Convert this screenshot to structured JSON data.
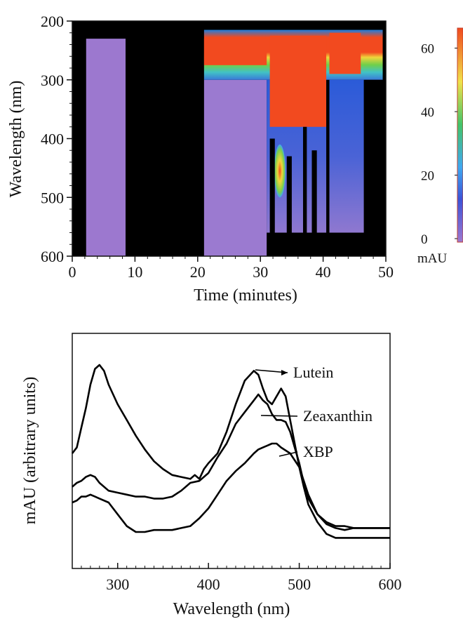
{
  "chart_data": [
    {
      "type": "heatmap",
      "title": "",
      "xlabel": "Time (minutes)",
      "ylabel": "Wavelength (nm)",
      "xlim": [
        0,
        50
      ],
      "ylim": [
        600,
        200
      ],
      "xticks": [
        0,
        10,
        20,
        30,
        40,
        50
      ],
      "yticks": [
        200,
        300,
        400,
        500,
        600
      ],
      "colorbar": {
        "label": "mAU",
        "range": [
          0,
          63
        ],
        "ticks": [
          0,
          20,
          40,
          60
        ],
        "colors": [
          "#9c78cf",
          "#1f4fd6",
          "#3fa8f0",
          "#43c46a",
          "#f0e24a",
          "#f04a1e"
        ]
      },
      "background_color": "#000000",
      "regions": [
        {
          "name": "void-early",
          "t": [
            2.2,
            8.5
          ],
          "wl": [
            205,
            600
          ],
          "mau": 0
        },
        {
          "name": "band-20-50",
          "t": [
            21,
            49.5
          ],
          "wl": [
            215,
            300
          ],
          "mau": 45
        },
        {
          "name": "peak-block-main",
          "t": [
            21,
            31
          ],
          "wl": [
            230,
            275
          ],
          "mau": 63
        },
        {
          "name": "peak-block-late",
          "t": [
            31.5,
            40.5
          ],
          "wl": [
            225,
            380
          ],
          "mau": 63
        },
        {
          "name": "peak-block-end",
          "t": [
            41,
            46
          ],
          "wl": [
            220,
            290
          ],
          "mau": 63
        },
        {
          "name": "hotspot-33",
          "t": [
            32.6,
            33.6
          ],
          "wl": [
            420,
            480
          ],
          "mau": 50
        }
      ]
    },
    {
      "type": "line",
      "title": "",
      "xlabel": "Wavelength (nm)",
      "ylabel": "mAU (arbitrary units)",
      "xlim": [
        250,
        600
      ],
      "xticks": [
        300,
        400,
        500,
        600
      ],
      "ylim": [
        0,
        100
      ],
      "series": [
        {
          "name": "Lutein",
          "x": [
            250,
            255,
            260,
            265,
            270,
            275,
            280,
            285,
            290,
            300,
            310,
            320,
            330,
            340,
            350,
            360,
            370,
            380,
            385,
            390,
            395,
            400,
            410,
            420,
            430,
            440,
            450,
            455,
            460,
            465,
            470,
            475,
            480,
            485,
            490,
            495,
            500,
            510,
            520,
            530,
            540,
            550,
            560,
            580,
            600
          ],
          "y": [
            55,
            58,
            68,
            78,
            90,
            98,
            100,
            97,
            90,
            80,
            72,
            64,
            57,
            51,
            47,
            44,
            43,
            42,
            44,
            42,
            47,
            50,
            55,
            66,
            80,
            92,
            97,
            95,
            88,
            82,
            80,
            84,
            88,
            84,
            72,
            60,
            48,
            34,
            24,
            19,
            17,
            16,
            17,
            17,
            17
          ]
        },
        {
          "name": "Zeaxanthin",
          "x": [
            250,
            255,
            260,
            265,
            270,
            275,
            280,
            290,
            300,
            310,
            320,
            330,
            340,
            350,
            360,
            370,
            380,
            390,
            400,
            410,
            420,
            430,
            440,
            450,
            455,
            460,
            465,
            470,
            475,
            480,
            485,
            490,
            495,
            500,
            505,
            510,
            520,
            530,
            540,
            550,
            560,
            580,
            600
          ],
          "y": [
            38,
            40,
            41,
            43,
            44,
            43,
            40,
            36,
            35,
            34,
            33,
            33,
            32,
            32,
            33,
            36,
            40,
            41,
            45,
            53,
            60,
            70,
            76,
            82,
            85,
            82,
            80,
            75,
            72,
            72,
            71,
            66,
            58,
            50,
            40,
            32,
            24,
            20,
            18,
            18,
            17,
            17,
            17
          ]
        },
        {
          "name": "XBP",
          "x": [
            250,
            255,
            260,
            265,
            270,
            275,
            280,
            290,
            300,
            310,
            320,
            330,
            340,
            350,
            360,
            370,
            380,
            390,
            400,
            410,
            420,
            430,
            440,
            450,
            455,
            460,
            465,
            470,
            475,
            480,
            490,
            500,
            505,
            510,
            520,
            530,
            540,
            550,
            560,
            580,
            600
          ],
          "y": [
            30,
            31,
            33,
            33,
            34,
            33,
            32,
            30,
            24,
            18,
            15,
            15,
            16,
            16,
            16,
            17,
            18,
            22,
            27,
            34,
            41,
            46,
            50,
            55,
            57,
            58,
            59,
            60,
            60,
            58,
            55,
            48,
            38,
            29,
            20,
            14,
            12,
            12,
            12,
            12,
            12
          ]
        }
      ],
      "annotations": [
        {
          "text": "Lutein",
          "target_x": 452,
          "target_series": "Lutein"
        },
        {
          "text": "Zeaxanthin",
          "target_x": 460,
          "target_series": "Zeaxanthin"
        },
        {
          "text": "XBP",
          "target_x": 460,
          "target_series": "XBP"
        }
      ]
    }
  ]
}
